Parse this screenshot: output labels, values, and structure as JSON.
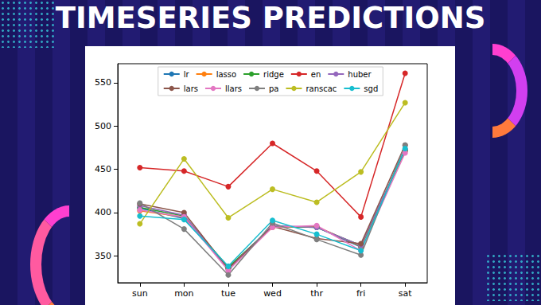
{
  "chart_data": {
    "type": "line",
    "title": "TIMESERIES PREDICTIONS",
    "categories": [
      "sun",
      "mon",
      "tue",
      "wed",
      "thr",
      "fri",
      "sat"
    ],
    "series": [
      {
        "name": "lr",
        "color": "#1f77b4",
        "values": [
          405,
          393,
          336,
          384,
          383,
          360,
          472
        ]
      },
      {
        "name": "lasso",
        "color": "#ff7f0e",
        "values": [
          402,
          395,
          337,
          383,
          384,
          361,
          471
        ]
      },
      {
        "name": "ridge",
        "color": "#2ca02c",
        "values": [
          406,
          396,
          337,
          384,
          383,
          362,
          472
        ]
      },
      {
        "name": "en",
        "color": "#d62728",
        "values": [
          452,
          448,
          430,
          480,
          448,
          395,
          561
        ]
      },
      {
        "name": "huber",
        "color": "#9467bd",
        "values": [
          408,
          397,
          335,
          385,
          383,
          362,
          473
        ]
      },
      {
        "name": "lars",
        "color": "#8c564b",
        "values": [
          410,
          400,
          335,
          384,
          370,
          364,
          478
        ]
      },
      {
        "name": "llars",
        "color": "#e377c2",
        "values": [
          403,
          395,
          333,
          383,
          385,
          356,
          469
        ]
      },
      {
        "name": "pa",
        "color": "#7f7f7f",
        "values": [
          411,
          381,
          328,
          388,
          369,
          351,
          478
        ]
      },
      {
        "name": "ranscac",
        "color": "#bcbd22",
        "values": [
          387,
          462,
          394,
          427,
          412,
          447,
          527
        ]
      },
      {
        "name": "sgd",
        "color": "#17becf",
        "values": [
          396,
          392,
          338,
          391,
          375,
          356,
          474
        ]
      }
    ],
    "ylim": [
      319,
      572
    ],
    "yticks": [
      350,
      400,
      450,
      500,
      550
    ],
    "grid": false,
    "legend": "upper center",
    "marker": "circle",
    "line_style": "solid"
  }
}
